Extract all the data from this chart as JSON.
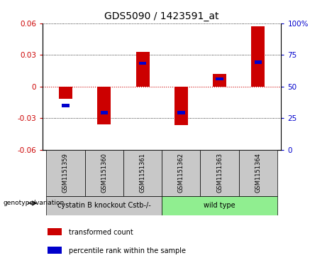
{
  "title": "GDS5090 / 1423591_at",
  "samples": [
    "GSM1151359",
    "GSM1151360",
    "GSM1151361",
    "GSM1151362",
    "GSM1151363",
    "GSM1151364"
  ],
  "red_values": [
    -0.012,
    -0.036,
    0.033,
    -0.037,
    0.012,
    0.057
  ],
  "blue_values": [
    -0.018,
    -0.025,
    0.022,
    -0.025,
    0.007,
    0.023
  ],
  "ylim": [
    -0.06,
    0.06
  ],
  "yticks_left": [
    -0.06,
    -0.03,
    0.0,
    0.03,
    0.06
  ],
  "yticks_right_labels": [
    "0",
    "25",
    "50",
    "75",
    "100%"
  ],
  "group_labels": [
    "cystatin B knockout Cstb-/-",
    "wild type"
  ],
  "group_colors": [
    "#c8c8c8",
    "#90EE90"
  ],
  "bar_width": 0.35,
  "red_color": "#cc0000",
  "blue_color": "#0000cc",
  "zero_line_color": "#cc0000",
  "sample_box_color": "#c8c8c8",
  "title_fontsize": 10,
  "tick_fontsize": 7.5,
  "left_tick_color": "#cc0000",
  "right_tick_color": "#0000cc"
}
